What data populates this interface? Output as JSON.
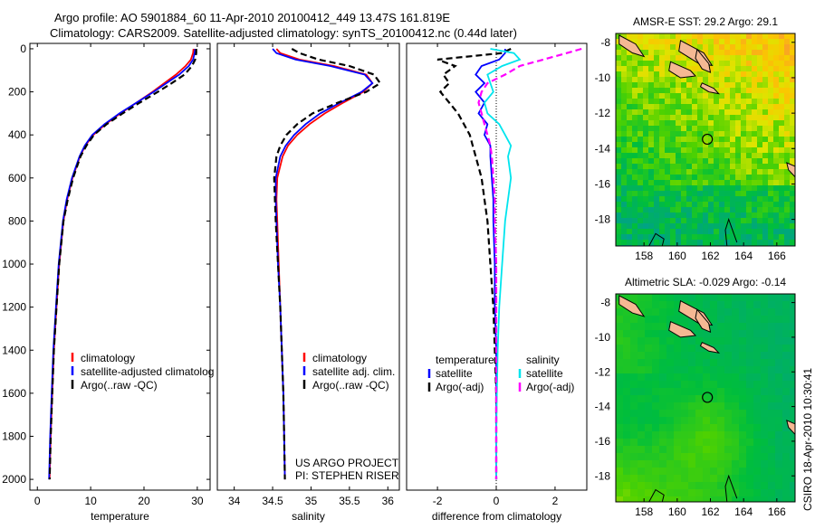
{
  "title_line1": "Argo profile: AO 5901884_60 11-Apr-2010 20100412_449 13.47S 161.819E",
  "title_line2": "Climatology: CARS2009. Satellite-adjusted climatology: synTS_20100412.nc (0.44d later)",
  "project_line1": "US ARGO PROJECT",
  "project_line2": "PI: STEPHEN RISER",
  "stamp": "CSIRO 18-Apr-2010 10:30:41",
  "colors": {
    "climatology": "#ff0000",
    "satellite": "#0000ff",
    "argo": "#000000",
    "sat_sal": "#00e5ee",
    "argo_sal": "#ff00ff"
  },
  "chart_data": [
    {
      "type": "line",
      "xlabel": "temperature",
      "ylabel": "",
      "xlim": [
        -1.4,
        32.4
      ],
      "ylim": [
        2050,
        -25
      ],
      "xticks": [
        "0",
        "10",
        "20",
        "30"
      ],
      "xtick_values": [
        0,
        10,
        20,
        30
      ],
      "yticks": [
        "0",
        "200",
        "400",
        "600",
        "800",
        "1000",
        "1200",
        "1400",
        "1600",
        "1800",
        "2000"
      ],
      "ytick_values": [
        0,
        200,
        400,
        600,
        800,
        1000,
        1200,
        1400,
        1600,
        1800,
        2000
      ],
      "legend": [
        "climatology",
        "satellite-adjusted climatolog",
        "Argo(..raw -QC)"
      ],
      "depth": [
        0,
        20,
        50,
        80,
        120,
        160,
        200,
        250,
        300,
        350,
        400,
        450,
        500,
        600,
        700,
        800,
        1000,
        1200,
        1400,
        1600,
        1800,
        2000
      ],
      "series": [
        {
          "name": "climatology",
          "color": "#ff0000",
          "dash": false,
          "values": [
            29.3,
            29.2,
            28.8,
            27.8,
            26.0,
            23.8,
            21.6,
            18.6,
            15.6,
            12.8,
            10.5,
            9.0,
            8.0,
            6.6,
            5.6,
            4.9,
            4.1,
            3.6,
            3.1,
            2.8,
            2.5,
            2.3
          ]
        },
        {
          "name": "satellite-adjusted climatology",
          "color": "#0000ff",
          "dash": false,
          "values": [
            29.6,
            29.5,
            29.2,
            28.4,
            26.6,
            24.2,
            21.8,
            18.6,
            15.4,
            12.6,
            10.3,
            8.9,
            7.9,
            6.5,
            5.5,
            4.8,
            4.0,
            3.5,
            3.0,
            2.7,
            2.4,
            2.2
          ]
        },
        {
          "name": "Argo(..raw -QC)",
          "color": "#000000",
          "dash": true,
          "values": [
            29.8,
            29.8,
            29.6,
            29.0,
            27.6,
            25.2,
            22.6,
            19.2,
            16.0,
            13.0,
            10.6,
            9.2,
            8.1,
            6.7,
            5.7,
            4.9,
            4.1,
            3.6,
            3.1,
            2.8,
            2.5,
            2.3
          ]
        }
      ]
    },
    {
      "type": "line",
      "xlabel": "salinity",
      "xlim": [
        33.78,
        36.15
      ],
      "ylim": [
        2050,
        -25
      ],
      "xticks": [
        "34",
        "34.5",
        "35",
        "35.5",
        "36"
      ],
      "xtick_values": [
        34,
        34.5,
        35,
        35.5,
        36
      ],
      "legend": [
        "climatology",
        "satellite adj. clim.",
        "Argo(..raw -QC)"
      ],
      "depth": [
        0,
        20,
        50,
        80,
        120,
        160,
        200,
        250,
        300,
        350,
        400,
        450,
        500,
        600,
        700,
        800,
        1000,
        1200,
        1400,
        1600,
        1800,
        2000
      ],
      "series": [
        {
          "name": "climatology",
          "color": "#ff0000",
          "dash": false,
          "values": [
            34.55,
            34.6,
            34.85,
            35.3,
            35.72,
            35.8,
            35.68,
            35.42,
            35.18,
            34.98,
            34.82,
            34.7,
            34.63,
            34.56,
            34.55,
            34.56,
            34.58,
            34.6,
            34.62,
            34.64,
            34.65,
            34.66
          ]
        },
        {
          "name": "satellite adj. clim.",
          "color": "#0000ff",
          "dash": false,
          "values": [
            34.5,
            34.55,
            34.8,
            35.25,
            35.7,
            35.8,
            35.66,
            35.38,
            35.12,
            34.93,
            34.78,
            34.67,
            34.6,
            34.54,
            34.54,
            34.55,
            34.57,
            34.6,
            34.62,
            34.64,
            34.65,
            34.66
          ]
        },
        {
          "name": "Argo(..raw -QC)",
          "color": "#000000",
          "dash": true,
          "values": [
            34.75,
            34.85,
            35.1,
            35.5,
            35.82,
            35.9,
            35.72,
            35.35,
            35.02,
            34.82,
            34.68,
            34.6,
            34.55,
            34.52,
            34.53,
            34.54,
            34.57,
            34.6,
            34.62,
            34.64,
            34.65,
            34.66
          ]
        }
      ]
    },
    {
      "type": "line",
      "xlabel": "difference from climatology",
      "xlim": [
        -3.05,
        3.08
      ],
      "ylim": [
        2050,
        -25
      ],
      "xticks": [
        "-2",
        "0",
        "2"
      ],
      "xtick_values": [
        -2,
        0,
        2
      ],
      "legend_headers": [
        "temperature",
        "salinity"
      ],
      "legend": [
        "satellite",
        "Argo(-adj)",
        "satellite",
        "Argo(-adj)"
      ],
      "depth": [
        0,
        20,
        50,
        80,
        120,
        160,
        200,
        250,
        300,
        350,
        400,
        450,
        500,
        600,
        700,
        800,
        1000,
        1200,
        1400,
        1600,
        1800,
        2000
      ],
      "series": [
        {
          "name": "temperature satellite",
          "color": "#0000ff",
          "dash": false,
          "values": [
            0.3,
            0.3,
            0.1,
            -0.5,
            -0.7,
            -0.4,
            -0.7,
            -0.4,
            -0.6,
            -0.3,
            -0.4,
            -0.2,
            -0.2,
            -0.15,
            -0.1,
            -0.1,
            -0.05,
            -0.05,
            0,
            0,
            0,
            0
          ]
        },
        {
          "name": "temperature Argo(-adj)",
          "color": "#000000",
          "dash": true,
          "values": [
            0.5,
            0.2,
            -2.0,
            -1.4,
            -1.8,
            -1.6,
            -1.9,
            -1.6,
            -1.3,
            -1.1,
            -0.9,
            -0.8,
            -0.7,
            -0.5,
            -0.4,
            -0.3,
            -0.2,
            -0.1,
            -0.05,
            0,
            0,
            0
          ]
        },
        {
          "name": "salinity satellite",
          "color": "#00e5ee",
          "dash": false,
          "values": [
            -0.2,
            0.6,
            0.8,
            0.2,
            -0.3,
            -0.2,
            -0.1,
            -0.4,
            -0.3,
            0.1,
            0.3,
            0.5,
            0.4,
            0.5,
            0.4,
            0.3,
            0.2,
            0.1,
            0.05,
            0.02,
            0,
            0
          ]
        },
        {
          "name": "salinity Argo(-adj)",
          "color": "#ff00ff",
          "dash": true,
          "values": [
            2.9,
            2.4,
            1.6,
            0.8,
            0.3,
            -0.3,
            -0.5,
            -0.6,
            -0.5,
            -0.4,
            -0.3,
            -0.2,
            -0.15,
            -0.1,
            -0.05,
            -0.05,
            0,
            0,
            0,
            0,
            0,
            0
          ]
        }
      ]
    },
    {
      "type": "heatmap",
      "title": "AMSR-E SST: 29.2  Argo: 29.1",
      "xlim": [
        156.3,
        167.1
      ],
      "ylim": [
        -19.5,
        -7.5
      ],
      "xticks": [
        "158",
        "160",
        "162",
        "164",
        "166"
      ],
      "xtick_values": [
        158,
        160,
        162,
        164,
        166
      ],
      "yticks": [
        "-8",
        "-10",
        "-12",
        "-14",
        "-16",
        "-18"
      ],
      "ytick_values": [
        -8,
        -10,
        -12,
        -14,
        -16,
        -18
      ],
      "marker": {
        "lon": 161.819,
        "lat": -13.47
      }
    },
    {
      "type": "heatmap",
      "title": "Altimetric SLA: -0.029  Argo: -0.14",
      "xlim": [
        156.3,
        167.1
      ],
      "ylim": [
        -19.5,
        -7.5
      ],
      "xticks": [
        "158",
        "160",
        "162",
        "164",
        "166"
      ],
      "xtick_values": [
        158,
        160,
        162,
        164,
        166
      ],
      "yticks": [
        "-8",
        "-10",
        "-12",
        "-14",
        "-16",
        "-18"
      ],
      "ytick_values": [
        -8,
        -10,
        -12,
        -14,
        -16,
        -18
      ],
      "marker": {
        "lon": 161.819,
        "lat": -13.47
      }
    }
  ]
}
